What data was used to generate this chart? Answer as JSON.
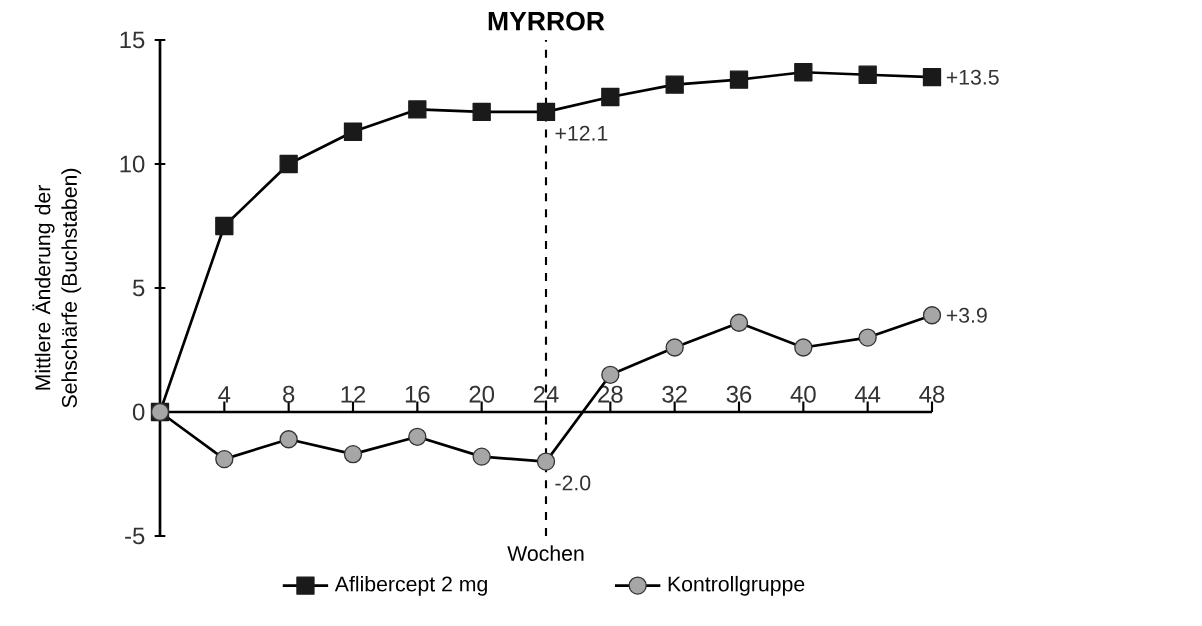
{
  "chart_data": {
    "type": "line",
    "xlabel": "Wochen",
    "ylabel": "Mittlere Änderung der Sehschärfe (Buchstaben)",
    "x": [
      0,
      4,
      8,
      12,
      16,
      20,
      24,
      28,
      32,
      36,
      40,
      44,
      48
    ],
    "series": [
      {
        "name": "Aflibercept 2 mg",
        "color": "#1a1a1a",
        "marker": "square",
        "values": [
          0,
          7.5,
          10,
          11.3,
          12.2,
          12.1,
          12.1,
          12.7,
          13.2,
          13.4,
          13.7,
          13.6,
          13.5
        ],
        "value_labels": [
          null,
          null,
          null,
          null,
          null,
          null,
          "+12.1",
          null,
          null,
          null,
          null,
          null,
          "+13.5"
        ]
      },
      {
        "name": "Kontrollgruppe",
        "color": "#a6a6a6",
        "marker": "circle",
        "values": [
          0,
          -1.9,
          -1.1,
          -1.7,
          -1.0,
          -1.8,
          -2.0,
          1.5,
          2.6,
          3.6,
          2.6,
          3.0,
          3.9
        ],
        "value_labels": [
          null,
          null,
          null,
          null,
          null,
          null,
          "-2.0",
          null,
          null,
          null,
          null,
          null,
          "+3.9"
        ]
      }
    ],
    "xlim": [
      0,
      48
    ],
    "xticks": [
      4,
      8,
      12,
      16,
      20,
      24,
      28,
      32,
      36,
      40,
      44,
      48
    ],
    "ylim": [
      -5,
      15
    ],
    "yticks": [
      -5,
      0,
      5,
      10,
      15
    ],
    "ref_lines": [
      {
        "axis": "x",
        "value": 24,
        "label": "MYRROR",
        "line_style": "dashed"
      }
    ],
    "legend": "bottom",
    "grid": false,
    "line_style": "solid"
  }
}
